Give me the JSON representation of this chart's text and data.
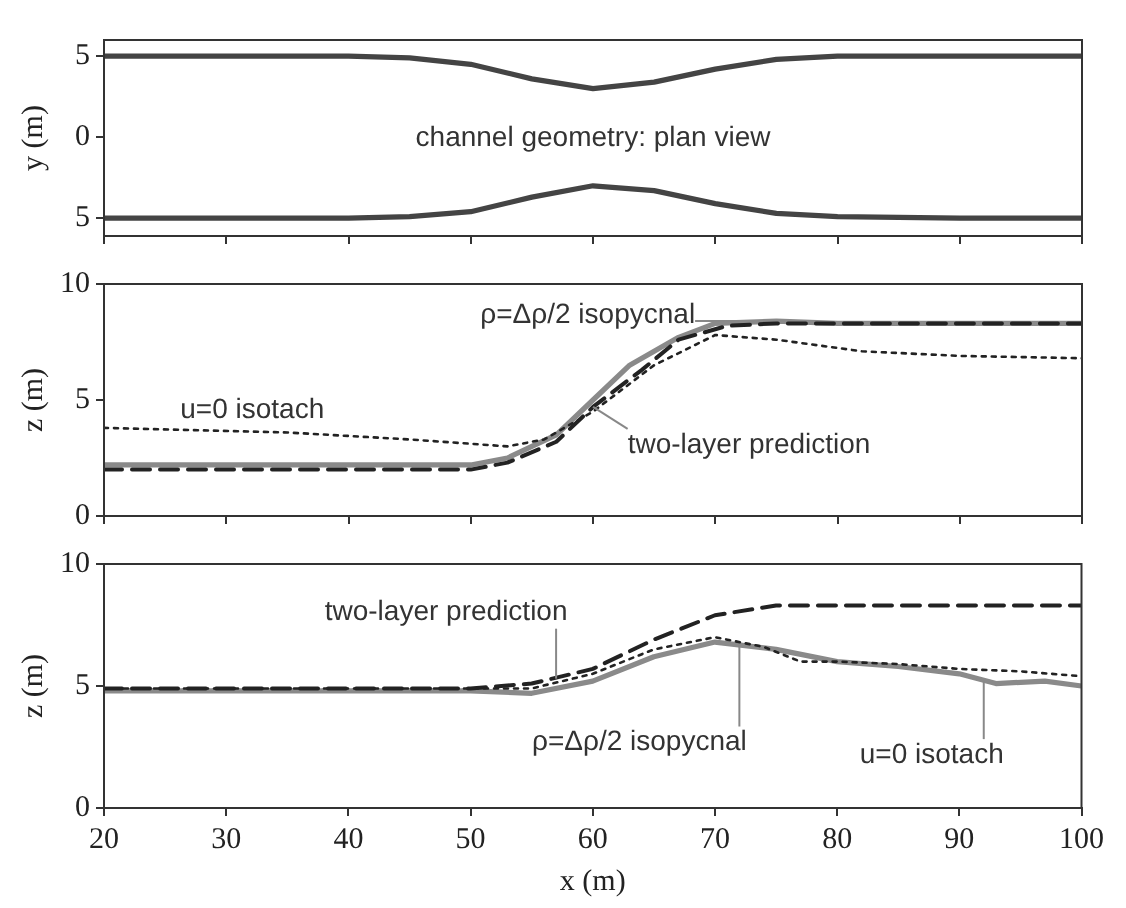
{
  "chart_data": [
    {
      "type": "line",
      "ylabel": "y (m)",
      "annotations": [
        "channel geometry: plan view"
      ],
      "xlim": [
        20,
        100
      ],
      "xticks": [
        20,
        30,
        40,
        50,
        60,
        70,
        80,
        90,
        100
      ],
      "ylim": [
        -6.1,
        6.0
      ],
      "yticks": [
        {
          "value": -5,
          "label": "5"
        },
        0,
        5
      ],
      "tick_labels": "y",
      "marker": "none",
      "legend": false,
      "series": [
        {
          "color": "#444444",
          "line_style": "solid",
          "x": [
            20,
            30,
            40,
            45,
            50,
            55,
            60,
            65,
            70,
            75,
            80,
            90,
            100
          ],
          "values": [
            5,
            5,
            5,
            4.9,
            4.5,
            3.6,
            3.0,
            3.4,
            4.2,
            4.8,
            5,
            5,
            5
          ]
        },
        {
          "color": "#444444",
          "line_style": "solid",
          "x": [
            20,
            30,
            40,
            45,
            50,
            55,
            60,
            65,
            70,
            75,
            80,
            90,
            100
          ],
          "values": [
            -5,
            -5,
            -5,
            -4.9,
            -4.6,
            -3.7,
            -3.0,
            -3.3,
            -4.1,
            -4.7,
            -4.9,
            -5,
            -5
          ]
        }
      ]
    },
    {
      "type": "line",
      "ylabel": "z (m)",
      "xlim": [
        20,
        100
      ],
      "xticks": [
        20,
        30,
        40,
        50,
        60,
        70,
        80,
        90,
        100
      ],
      "ylim": [
        0,
        10
      ],
      "yticks": [
        0,
        5,
        10
      ],
      "tick_labels": "y",
      "marker": "none",
      "legend": false,
      "annotations": [
        {
          "text": "ρ=Δρ/2 isopycnal",
          "x": 72,
          "y": 8.4
        },
        {
          "text": "u=0 isotach",
          "x": 30,
          "y": 3.8
        },
        {
          "text": "two-layer prediction",
          "x": 60,
          "y": 4.7
        }
      ],
      "series": [
        {
          "color": "#8a8a8a",
          "line_style": "solid",
          "x": [
            20,
            30,
            40,
            50,
            53,
            57,
            60,
            63,
            67,
            70,
            75,
            80,
            90,
            100
          ],
          "values": [
            2.2,
            2.2,
            2.2,
            2.2,
            2.5,
            3.5,
            5.0,
            6.5,
            7.7,
            8.3,
            8.4,
            8.3,
            8.3,
            8.3
          ]
        },
        {
          "color": "#222222",
          "line_style": "dashed",
          "x": [
            20,
            30,
            40,
            50,
            53,
            57,
            60,
            64,
            67,
            71,
            75,
            80,
            90,
            100
          ],
          "values": [
            2.0,
            2.0,
            2.0,
            2.0,
            2.3,
            3.2,
            4.7,
            6.3,
            7.6,
            8.2,
            8.3,
            8.3,
            8.3,
            8.3
          ]
        },
        {
          "color": "#222222",
          "line_style": "dotted",
          "x": [
            20,
            35,
            45,
            53,
            56,
            60,
            65,
            70,
            75,
            82,
            90,
            100
          ],
          "values": [
            3.8,
            3.6,
            3.3,
            3.0,
            3.3,
            4.5,
            6.5,
            7.8,
            7.6,
            7.1,
            6.9,
            6.8
          ]
        }
      ]
    },
    {
      "type": "line",
      "xlabel": "x (m)",
      "ylabel": "z (m)",
      "xlim": [
        20,
        100
      ],
      "xticks": [
        20,
        30,
        40,
        50,
        60,
        70,
        80,
        90,
        100
      ],
      "ylim": [
        0,
        10
      ],
      "yticks": [
        0,
        5,
        10
      ],
      "marker": "none",
      "legend": false,
      "annotations": [
        {
          "text": "two-layer prediction",
          "x": 57,
          "y": 5.3
        },
        {
          "text": "ρ=Δρ/2 isopycnal",
          "x": 72,
          "y": 6.7
        },
        {
          "text": "u=0 isotach",
          "x": 92,
          "y": 5.2
        }
      ],
      "series": [
        {
          "color": "#222222",
          "line_style": "dashed",
          "x": [
            20,
            30,
            40,
            50,
            55,
            60,
            65,
            70,
            75,
            80,
            90,
            100
          ],
          "values": [
            4.9,
            4.9,
            4.9,
            4.9,
            5.1,
            5.7,
            6.9,
            7.9,
            8.3,
            8.3,
            8.3,
            8.3
          ]
        },
        {
          "color": "#8a8a8a",
          "line_style": "solid",
          "x": [
            20,
            30,
            40,
            50,
            55,
            60,
            65,
            70,
            75,
            80,
            85,
            90,
            93,
            97,
            100
          ],
          "values": [
            4.8,
            4.8,
            4.8,
            4.8,
            4.7,
            5.2,
            6.2,
            6.8,
            6.5,
            6.0,
            5.8,
            5.5,
            5.1,
            5.2,
            5.0
          ]
        },
        {
          "color": "#222222",
          "line_style": "dotted",
          "x": [
            20,
            30,
            40,
            50,
            55,
            60,
            65,
            70,
            74,
            77,
            80,
            85,
            90,
            95,
            100
          ],
          "values": [
            4.9,
            4.9,
            4.9,
            4.9,
            4.9,
            5.5,
            6.5,
            7.0,
            6.6,
            6.0,
            6.0,
            5.9,
            5.7,
            5.6,
            5.4
          ]
        }
      ]
    }
  ]
}
